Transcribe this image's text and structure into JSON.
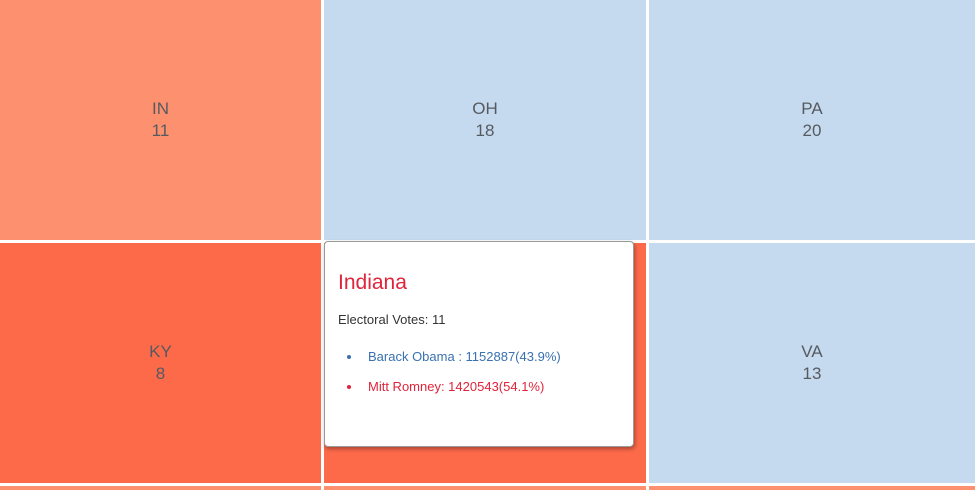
{
  "colors": {
    "rep_light": "#fd916f",
    "rep_dark": "#fd6a4a",
    "dem_light": "#c6daef",
    "dem_text": "#3a71b0",
    "rep_text": "#e0243a",
    "tile_text": "#555a60"
  },
  "tiles": [
    {
      "abbr": "IN",
      "ev": "11",
      "party": "rep",
      "fill": "#fd916f"
    },
    {
      "abbr": "OH",
      "ev": "18",
      "party": "dem",
      "fill": "#c6daef"
    },
    {
      "abbr": "PA",
      "ev": "20",
      "party": "dem",
      "fill": "#c6daef"
    },
    {
      "abbr": "KY",
      "ev": "8",
      "party": "rep",
      "fill": "#fd6a4a"
    },
    {
      "abbr": "",
      "ev": "",
      "party": "rep",
      "fill": "#fd6a4a"
    },
    {
      "abbr": "VA",
      "ev": "13",
      "party": "dem",
      "fill": "#c6daef"
    }
  ],
  "bottom_strip_fills": [
    "#fd916f",
    "#fd916f",
    "#fd916f"
  ],
  "tooltip": {
    "title": "Indiana",
    "electoral_votes_text": "Electoral Votes: 11",
    "candidates": [
      {
        "text": "Barack Obama : 1152887(43.9%)",
        "color": "#3a71b0"
      },
      {
        "text": "Mitt Romney: 1420543(54.1%)",
        "color": "#e0243a"
      }
    ]
  }
}
